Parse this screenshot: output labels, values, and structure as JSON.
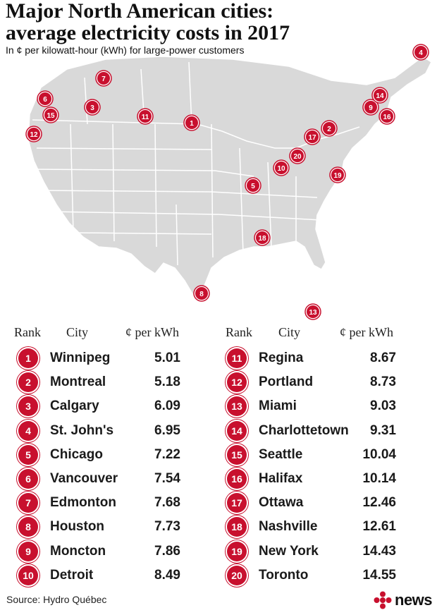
{
  "title": "Major North American cities: average electricity costs in 2017",
  "subtitle": "In ¢ per kilowatt-hour (kWh) for large-power customers",
  "headers": {
    "rank": "Rank",
    "city": "City",
    "value": "¢ per kWh"
  },
  "source": "Source: Hydro Québec",
  "logo_text": "news",
  "colors": {
    "marker": "#c8102e",
    "map_land": "#d9d9d9",
    "map_lines": "#ffffff"
  },
  "chart_data": {
    "type": "table",
    "columns": [
      "Rank",
      "City",
      "¢ per kWh"
    ],
    "rows": [
      {
        "rank": "1",
        "city": "Winnipeg",
        "value": "5.01"
      },
      {
        "rank": "2",
        "city": "Montreal",
        "value": "5.18"
      },
      {
        "rank": "3",
        "city": "Calgary",
        "value": "6.09"
      },
      {
        "rank": "4",
        "city": "St. John's",
        "value": "6.95"
      },
      {
        "rank": "5",
        "city": "Chicago",
        "value": "7.22"
      },
      {
        "rank": "6",
        "city": "Vancouver",
        "value": "7.54"
      },
      {
        "rank": "7",
        "city": "Edmonton",
        "value": "7.68"
      },
      {
        "rank": "8",
        "city": "Houston",
        "value": "7.73"
      },
      {
        "rank": "9",
        "city": "Moncton",
        "value": "7.86"
      },
      {
        "rank": "10",
        "city": "Detroit",
        "value": "8.49"
      },
      {
        "rank": "11",
        "city": "Regina",
        "value": "8.67"
      },
      {
        "rank": "12",
        "city": "Portland",
        "value": "8.73"
      },
      {
        "rank": "13",
        "city": "Miami",
        "value": "9.03"
      },
      {
        "rank": "14",
        "city": "Charlottetown",
        "value": "9.31"
      },
      {
        "rank": "15",
        "city": "Seattle",
        "value": "10.04"
      },
      {
        "rank": "16",
        "city": "Halifax",
        "value": "10.14"
      },
      {
        "rank": "17",
        "city": "Ottawa",
        "value": "12.46"
      },
      {
        "rank": "18",
        "city": "Nashville",
        "value": "12.61"
      },
      {
        "rank": "19",
        "city": "New York",
        "value": "14.43"
      },
      {
        "rank": "20",
        "city": "Toronto",
        "value": "14.55"
      }
    ],
    "map_markers": [
      "1",
      "2",
      "3",
      "4",
      "5",
      "6",
      "7",
      "8",
      "9",
      "10",
      "11",
      "12",
      "13",
      "14",
      "15",
      "16",
      "17",
      "18",
      "19",
      "20"
    ]
  }
}
